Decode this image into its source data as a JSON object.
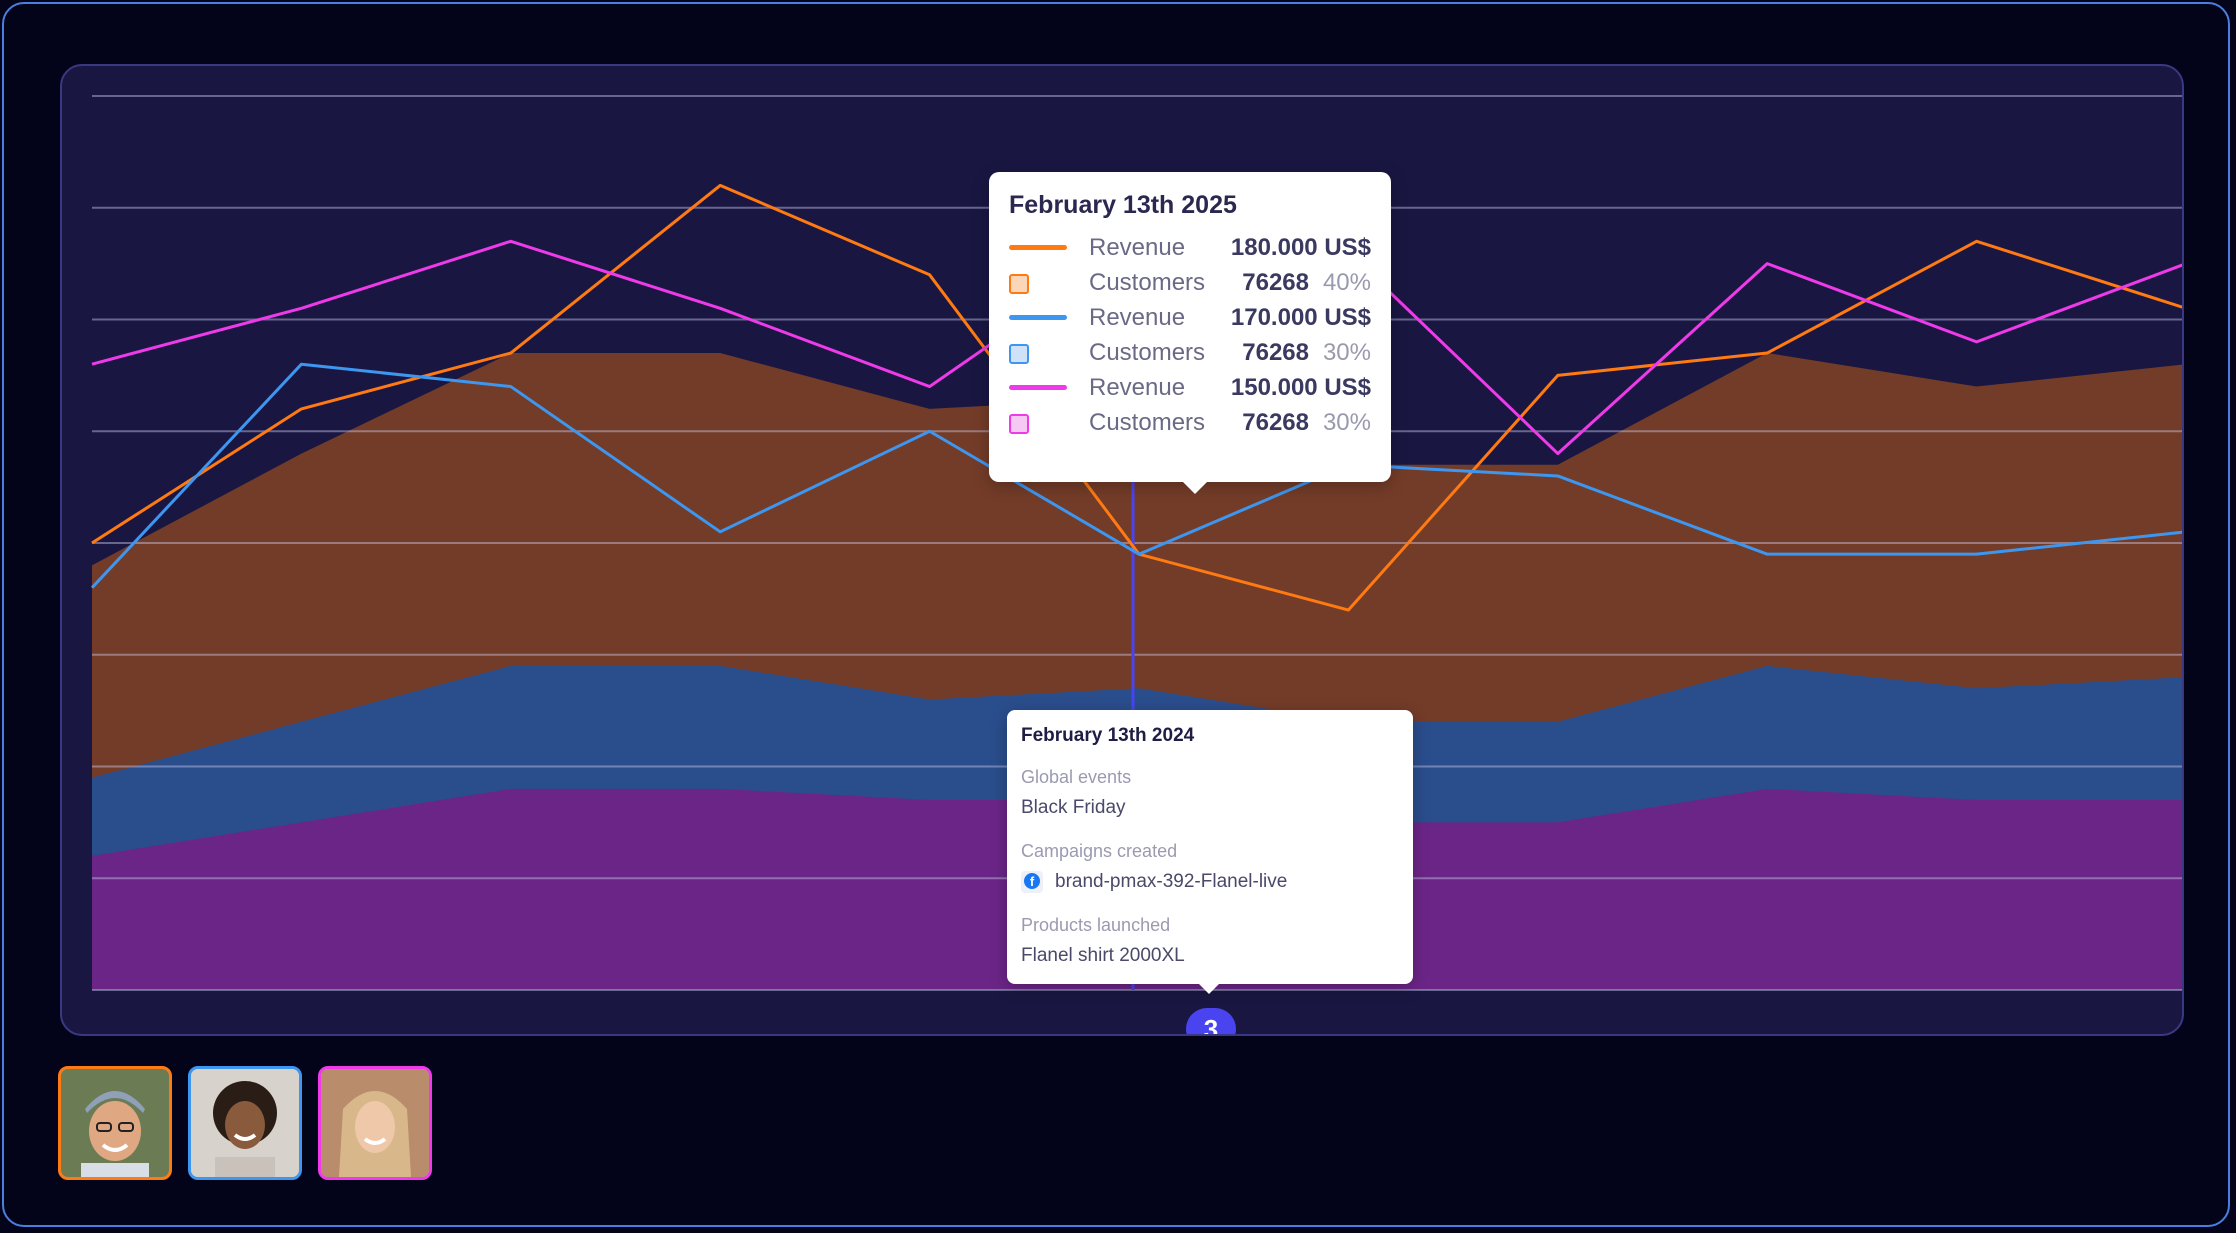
{
  "colors": {
    "background": "#04041a",
    "panel": "#191742",
    "orange": "#ff7a12",
    "blue": "#3d96f0",
    "magenta": "#ee3ae8",
    "area_brown": "#733c28",
    "area_blue": "#2a4d8c",
    "area_purple": "#6b2587",
    "marker": "#4a44f0"
  },
  "chart_data": {
    "type": "line",
    "x": [
      0,
      1,
      2,
      3,
      4,
      5,
      6,
      7,
      8,
      9,
      10
    ],
    "ylim": [
      0,
      8
    ],
    "grid": true,
    "series": [
      {
        "name": "Revenue",
        "kind": "line",
        "color": "#ff7a12",
        "values": [
          4.0,
          5.2,
          5.7,
          7.2,
          6.4,
          3.9,
          3.4,
          5.5,
          5.7,
          6.7,
          6.1
        ]
      },
      {
        "name": "Revenue",
        "kind": "line",
        "color": "#3d96f0",
        "values": [
          3.6,
          5.6,
          5.4,
          4.1,
          5.0,
          3.9,
          4.7,
          4.6,
          3.9,
          3.9,
          4.1
        ]
      },
      {
        "name": "Revenue",
        "kind": "line",
        "color": "#ee3ae8",
        "values": [
          5.6,
          6.1,
          6.7,
          6.1,
          5.4,
          6.7,
          6.6,
          4.8,
          6.5,
          5.8,
          6.5
        ]
      },
      {
        "name": "Customers",
        "kind": "area",
        "color": "#733c28",
        "values": [
          3.8,
          4.8,
          5.7,
          5.7,
          5.2,
          5.3,
          4.7,
          4.7,
          5.7,
          5.4,
          5.6
        ]
      },
      {
        "name": "Customers",
        "kind": "area",
        "color": "#2a4d8c",
        "values": [
          1.9,
          2.4,
          2.9,
          2.9,
          2.6,
          2.7,
          2.4,
          2.4,
          2.9,
          2.7,
          2.8
        ]
      },
      {
        "name": "Customers",
        "kind": "area",
        "color": "#6b2587",
        "values": [
          1.2,
          1.5,
          1.8,
          1.8,
          1.7,
          1.7,
          1.5,
          1.5,
          1.8,
          1.7,
          1.7
        ]
      }
    ]
  },
  "tooltip_main": {
    "title": "February 13th 2025",
    "rows": [
      {
        "revenue_label": "Revenue",
        "revenue_value": "180.000 US$",
        "customers_label": "Customers",
        "customers_value": "76268",
        "customers_pct": "40%",
        "color": "#ff7a12",
        "fill": "#fbd6b8"
      },
      {
        "revenue_label": "Revenue",
        "revenue_value": "170.000 US$",
        "customers_label": "Customers",
        "customers_value": "76268",
        "customers_pct": "30%",
        "color": "#3d96f0",
        "fill": "#cfe2f8"
      },
      {
        "revenue_label": "Revenue",
        "revenue_value": "150.000 US$",
        "customers_label": "Customers",
        "customers_value": "76268",
        "customers_pct": "30%",
        "color": "#ee3ae8",
        "fill": "#f6c8f4"
      }
    ]
  },
  "tooltip_events": {
    "title": "February 13th 2024",
    "global_events_label": "Global events",
    "global_events_value": "Black Friday",
    "campaigns_label": "Campaigns created",
    "campaigns_icon": "facebook-icon",
    "campaigns_value": "brand-pmax-392-Flanel-live",
    "products_label": "Products launched",
    "products_value": "Flanel shirt 2000XL"
  },
  "event_marker": {
    "count": "3"
  },
  "avatars": [
    {
      "icon": "avatar-man-cap",
      "color": "#ff7a12"
    },
    {
      "icon": "avatar-woman-curly",
      "color": "#3d96f0"
    },
    {
      "icon": "avatar-woman-blonde",
      "color": "#ee3ae8"
    }
  ]
}
